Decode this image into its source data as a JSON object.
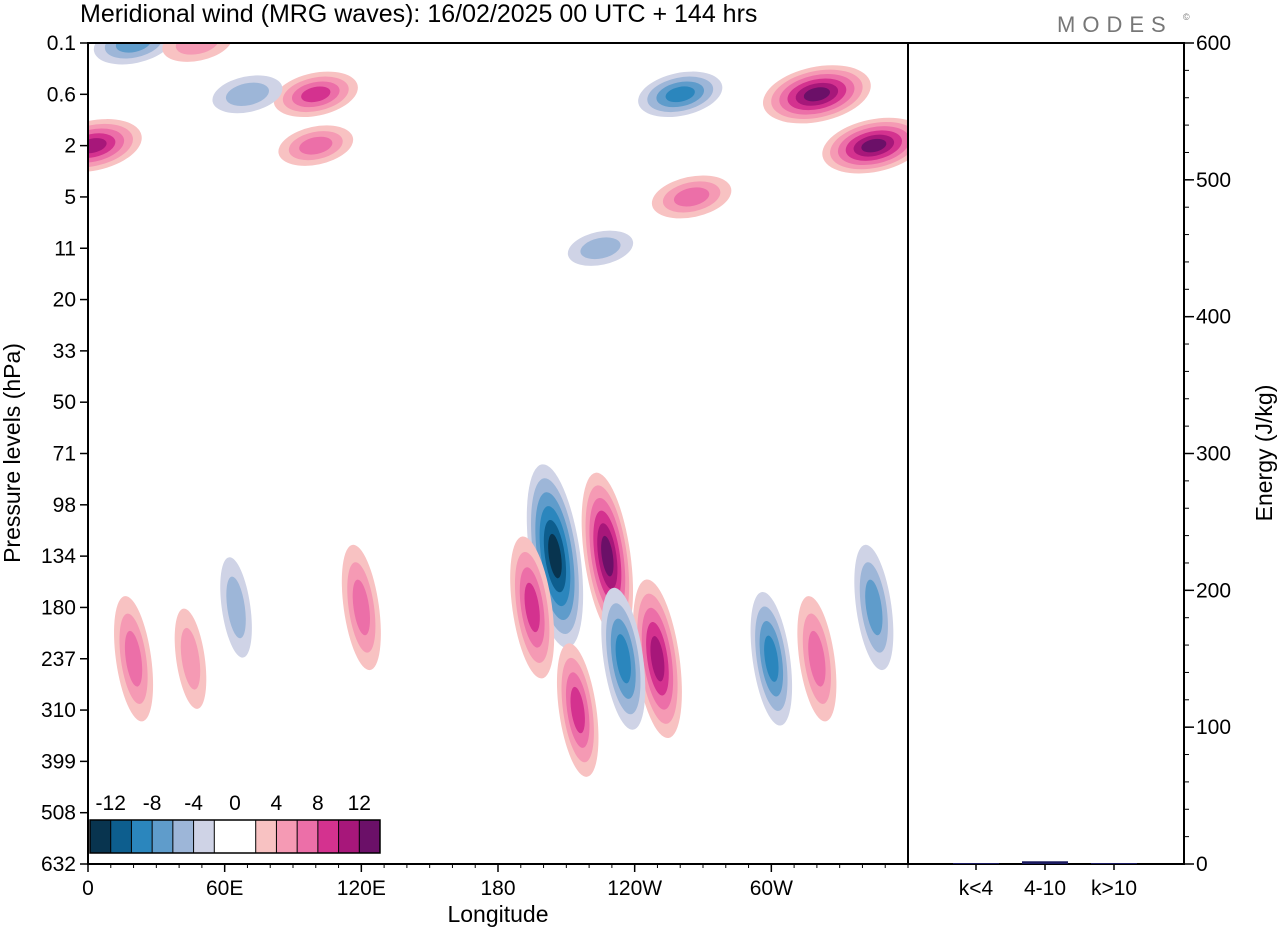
{
  "title": "Meridional wind (MRG waves):  16/02/2025  00 UTC  + 144 hrs",
  "logo": "MODES",
  "logo_mark": "©",
  "chart_data": [
    {
      "type": "heatmap",
      "xlabel": "Longitude",
      "ylabel": "Pressure levels (hPa)",
      "x_ticks": [
        "0",
        "60E",
        "120E",
        "180",
        "120W",
        "60W"
      ],
      "x_tick_values": [
        0,
        60,
        120,
        180,
        240,
        300
      ],
      "xlim": [
        0,
        360
      ],
      "y_ticks": [
        "0.1",
        "0.6",
        "2",
        "5",
        "11",
        "20",
        "33",
        "50",
        "71",
        "98",
        "134",
        "180",
        "237",
        "310",
        "399",
        "508",
        "632"
      ],
      "colorbar_labels": [
        "-12",
        "-8",
        "-4",
        "0",
        "4",
        "8",
        "12"
      ],
      "colorbar_colors": [
        "#08344f",
        "#0d5e8e",
        "#2b86bd",
        "#5f9ccb",
        "#9db6d8",
        "#cfd3e6",
        "#ffffff",
        "#ffffff",
        "#f8c2c2",
        "#f59ab4",
        "#ec6fa8",
        "#d4328f",
        "#a7177a",
        "#6b1068"
      ],
      "features": [
        {
          "lon": 20,
          "p": "0.1",
          "v": -6
        },
        {
          "lon": 48,
          "p": "0.1",
          "v": 4
        },
        {
          "lon": 2,
          "p": "2",
          "v": 10
        },
        {
          "lon": 100,
          "p": "0.6",
          "v": 7
        },
        {
          "lon": 100,
          "p": "2",
          "v": 5
        },
        {
          "lon": 70,
          "p": "0.6",
          "v": -4
        },
        {
          "lon": 260,
          "p": "0.6",
          "v": -7
        },
        {
          "lon": 320,
          "p": "0.6",
          "v": 12
        },
        {
          "lon": 345,
          "p": "2",
          "v": 11
        },
        {
          "lon": 225,
          "p": "11",
          "v": -3
        },
        {
          "lon": 265,
          "p": "5",
          "v": 6
        },
        {
          "lon": 205,
          "p": "134",
          "v": -13
        },
        {
          "lon": 228,
          "p": "134",
          "v": 11
        },
        {
          "lon": 250,
          "p": "237",
          "v": 10
        },
        {
          "lon": 235,
          "p": "237",
          "v": -8
        },
        {
          "lon": 195,
          "p": "180",
          "v": 8
        },
        {
          "lon": 215,
          "p": "310",
          "v": 7
        },
        {
          "lon": 300,
          "p": "237",
          "v": -7
        },
        {
          "lon": 320,
          "p": "237",
          "v": 6
        },
        {
          "lon": 345,
          "p": "180",
          "v": -6
        },
        {
          "lon": 20,
          "p": "237",
          "v": 6
        },
        {
          "lon": 45,
          "p": "237",
          "v": 3
        },
        {
          "lon": 65,
          "p": "180",
          "v": -3
        },
        {
          "lon": 120,
          "p": "180",
          "v": 6
        }
      ]
    },
    {
      "type": "bar",
      "ylabel": "Energy (J/kg)",
      "categories": [
        "k<4",
        "4-10",
        "k>10"
      ],
      "values": [
        0,
        2,
        0
      ],
      "ylim": [
        0,
        600
      ],
      "y_ticks": [
        "0",
        "100",
        "200",
        "300",
        "400",
        "500",
        "600"
      ]
    }
  ]
}
